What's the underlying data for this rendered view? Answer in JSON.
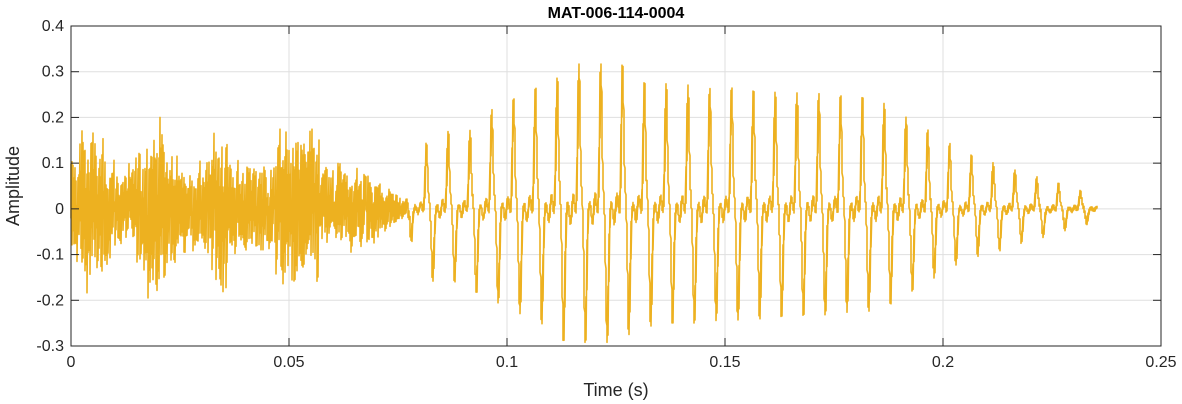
{
  "chart_data": {
    "type": "line",
    "title": "MAT-006-114-0004",
    "xlabel": "Time (s)",
    "ylabel": "Amplitude",
    "xlim": [
      0,
      0.25
    ],
    "ylim": [
      -0.3,
      0.4
    ],
    "xticks": [
      0,
      0.05,
      0.1,
      0.15,
      0.2,
      0.25
    ],
    "xtick_labels": [
      "0",
      "0.05",
      "0.1",
      "0.15",
      "0.2",
      "0.25"
    ],
    "yticks": [
      -0.3,
      -0.2,
      -0.1,
      0,
      0.1,
      0.2,
      0.3,
      0.4
    ],
    "ytick_labels": [
      "-0.3",
      "-0.2",
      "-0.1",
      "0",
      "0.1",
      "0.2",
      "0.3",
      "0.4"
    ],
    "grid": true,
    "series": [
      {
        "color": "#EDB120",
        "duration_s": 0.2355,
        "envelope": [
          {
            "t_start": 0.0,
            "t_end": 0.077,
            "kind": "noise",
            "peak": 0.2,
            "trough": -0.2
          },
          {
            "t_start": 0.077,
            "t_end": 0.235,
            "kind": "periodic",
            "pitch_hz": 200,
            "peak": 0.33,
            "trough": -0.26
          }
        ]
      }
    ]
  }
}
